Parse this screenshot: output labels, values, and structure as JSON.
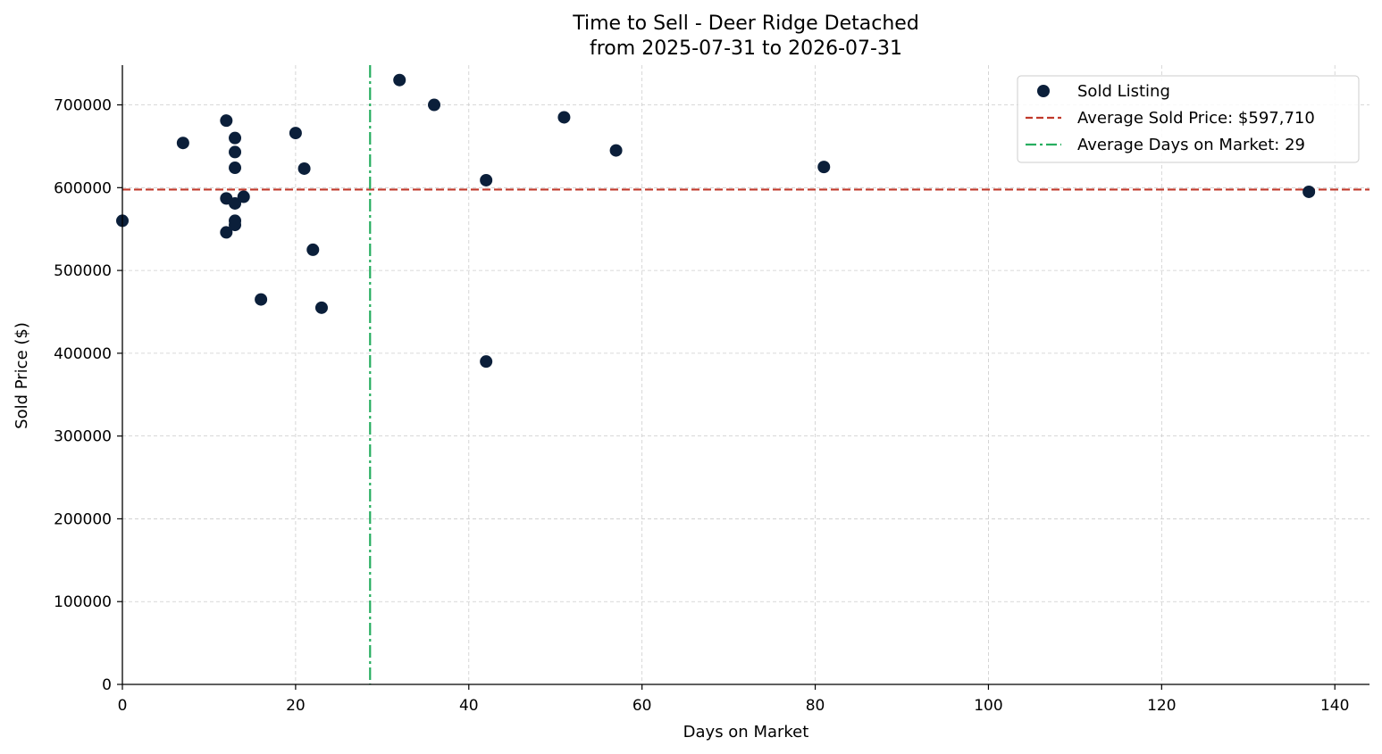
{
  "chart_data": {
    "type": "scatter",
    "title": "Time to Sell - Deer Ridge Detached",
    "subtitle": "from 2025-07-31 to 2026-07-31",
    "xlabel": "Days on Market",
    "ylabel": "Sold Price ($)",
    "xlim": [
      0,
      144
    ],
    "ylim": [
      0,
      748000
    ],
    "x_ticks": [
      0,
      20,
      40,
      60,
      80,
      100,
      120,
      140
    ],
    "y_ticks": [
      0,
      100000,
      200000,
      300000,
      400000,
      500000,
      600000,
      700000
    ],
    "grid": true,
    "legend_position": "top-right",
    "series": [
      {
        "name": "Sold Listing",
        "color": "#0b1f3a",
        "points": [
          {
            "x": 0,
            "y": 560000
          },
          {
            "x": 7,
            "y": 654000
          },
          {
            "x": 12,
            "y": 681000
          },
          {
            "x": 12,
            "y": 587000
          },
          {
            "x": 12,
            "y": 546000
          },
          {
            "x": 13,
            "y": 660000
          },
          {
            "x": 13,
            "y": 643000
          },
          {
            "x": 13,
            "y": 624000
          },
          {
            "x": 13,
            "y": 581000
          },
          {
            "x": 13,
            "y": 560000
          },
          {
            "x": 13,
            "y": 555000
          },
          {
            "x": 14,
            "y": 589000
          },
          {
            "x": 16,
            "y": 465000
          },
          {
            "x": 20,
            "y": 666000
          },
          {
            "x": 21,
            "y": 623000
          },
          {
            "x": 22,
            "y": 525000
          },
          {
            "x": 23,
            "y": 455000
          },
          {
            "x": 32,
            "y": 730000
          },
          {
            "x": 36,
            "y": 700000
          },
          {
            "x": 42,
            "y": 609000
          },
          {
            "x": 42,
            "y": 390000
          },
          {
            "x": 51,
            "y": 685000
          },
          {
            "x": 57,
            "y": 645000
          },
          {
            "x": 81,
            "y": 625000
          },
          {
            "x": 137,
            "y": 595000
          }
        ]
      }
    ],
    "reference_lines": [
      {
        "name": "Average Sold Price: $597,710",
        "orientation": "horizontal",
        "value": 597710,
        "color": "#c0392b",
        "style": "dashed"
      },
      {
        "name": "Average Days on Market: 29",
        "orientation": "vertical",
        "value": 28.6,
        "color": "#27ae60",
        "style": "dashdot"
      }
    ]
  }
}
